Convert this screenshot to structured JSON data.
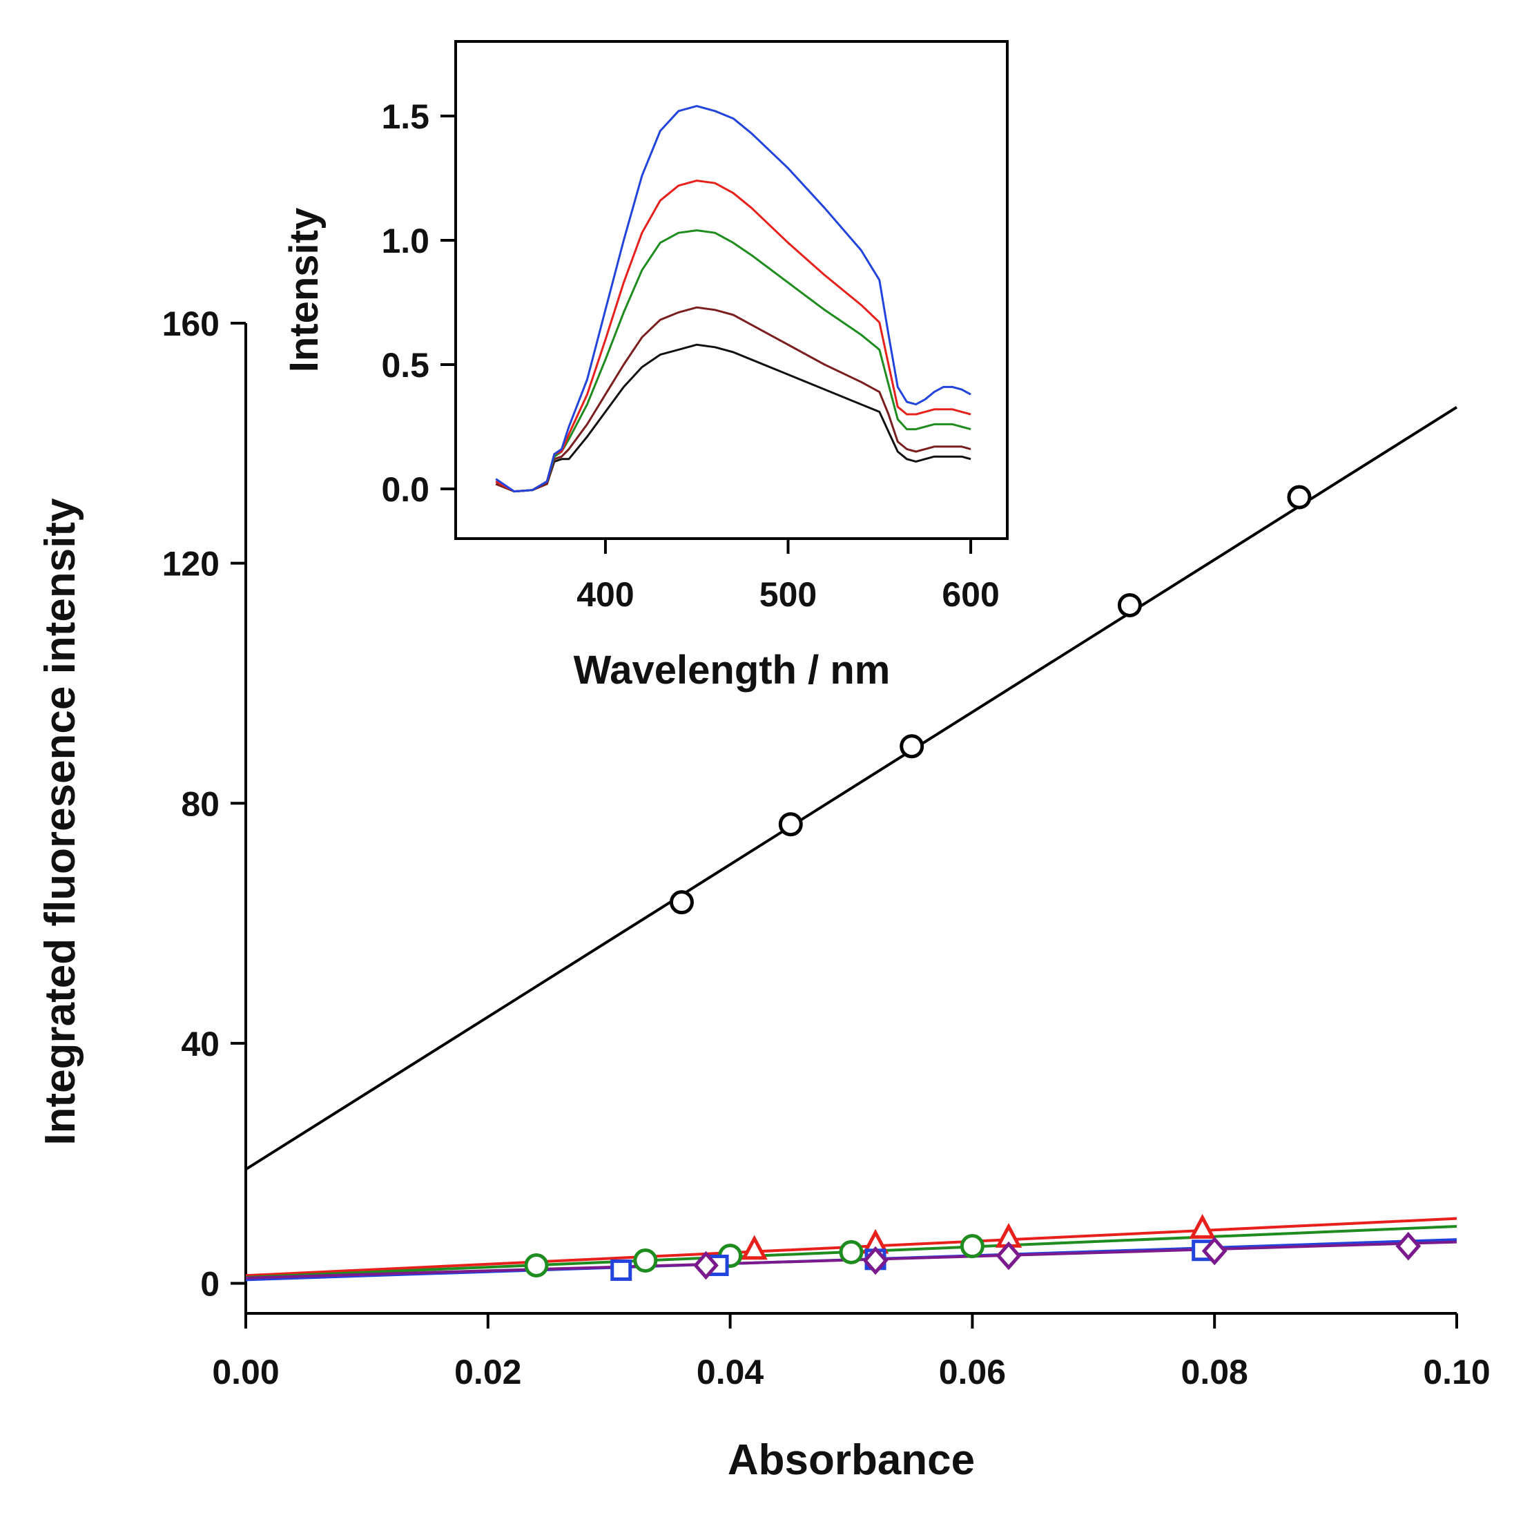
{
  "chart_data": [
    {
      "id": "main",
      "type": "scatter",
      "title": "",
      "xlabel": "Absorbance",
      "ylabel": "Integrated fluoresence intensity",
      "xlim": [
        0,
        0.1
      ],
      "ylim": [
        -5,
        160
      ],
      "xticks": [
        0.0,
        0.02,
        0.04,
        0.06,
        0.08,
        0.1
      ],
      "xtick_labels": [
        "0.00",
        "0.02",
        "0.04",
        "0.06",
        "0.08",
        "0.10"
      ],
      "yticks": [
        0,
        40,
        80,
        120,
        160
      ],
      "ytick_labels": [
        "0",
        "40",
        "80",
        "120",
        "160"
      ],
      "grid": false,
      "series": [
        {
          "name": "black circles",
          "color": "#000000",
          "marker": "circle",
          "x": [
            0.036,
            0.045,
            0.055,
            0.073,
            0.087
          ],
          "y": [
            63.5,
            76.5,
            89.5,
            113,
            131
          ],
          "fit": {
            "slope": 1270,
            "intercept": 19
          }
        },
        {
          "name": "red triangles",
          "color": "#e8201c",
          "marker": "triangle",
          "x": [
            0.042,
            0.052,
            0.063,
            0.079
          ],
          "y": [
            5.5,
            6.5,
            7.5,
            9
          ],
          "fit": {
            "slope": 95,
            "intercept": 1.3
          }
        },
        {
          "name": "green circles",
          "color": "#1e8c1e",
          "marker": "circle",
          "x": [
            0.024,
            0.033,
            0.04,
            0.05,
            0.06
          ],
          "y": [
            3,
            3.8,
            4.6,
            5.2,
            6.2
          ],
          "fit": {
            "slope": 85,
            "intercept": 1.0
          }
        },
        {
          "name": "blue squares",
          "color": "#2244dd",
          "marker": "square",
          "x": [
            0.031,
            0.039,
            0.052,
            0.079
          ],
          "y": [
            2.2,
            3.0,
            4.0,
            5.5
          ],
          "fit": {
            "slope": 67,
            "intercept": 0.6
          }
        },
        {
          "name": "purple diamonds",
          "color": "#7a1a8c",
          "marker": "diamond",
          "x": [
            0.038,
            0.052,
            0.063,
            0.08,
            0.096
          ],
          "y": [
            3.0,
            3.8,
            4.6,
            5.4,
            6.2
          ],
          "fit": {
            "slope": 60,
            "intercept": 0.9
          }
        }
      ]
    },
    {
      "id": "inset",
      "type": "line",
      "title": "",
      "xlabel": "Wavelength / nm",
      "ylabel": "Intensity",
      "xlim": [
        318,
        620
      ],
      "ylim": [
        -0.2,
        1.8
      ],
      "xticks": [
        400,
        500,
        600
      ],
      "xtick_labels": [
        "400",
        "500",
        "600"
      ],
      "yticks": [
        0.0,
        0.5,
        1.0,
        1.5
      ],
      "ytick_labels": [
        "0.0",
        "0.5",
        "1.0",
        "1.5"
      ],
      "grid": false,
      "x": [
        340,
        350,
        360,
        368,
        372,
        376,
        380,
        390,
        400,
        410,
        420,
        430,
        440,
        450,
        460,
        470,
        480,
        500,
        520,
        540,
        550,
        555,
        560,
        565,
        570,
        575,
        580,
        585,
        590,
        595,
        600
      ],
      "series": [
        {
          "name": "blue",
          "color": "#2244dd",
          "values": [
            0.04,
            -0.01,
            -0.005,
            0.03,
            0.14,
            0.16,
            0.25,
            0.44,
            0.72,
            1.0,
            1.26,
            1.44,
            1.52,
            1.54,
            1.52,
            1.49,
            1.43,
            1.29,
            1.13,
            0.96,
            0.84,
            0.62,
            0.41,
            0.35,
            0.34,
            0.36,
            0.39,
            0.41,
            0.41,
            0.4,
            0.38
          ]
        },
        {
          "name": "red",
          "color": "#e8201c",
          "values": [
            0.03,
            -0.01,
            -0.005,
            0.03,
            0.14,
            0.15,
            0.22,
            0.38,
            0.6,
            0.83,
            1.03,
            1.16,
            1.22,
            1.24,
            1.23,
            1.19,
            1.13,
            0.99,
            0.86,
            0.74,
            0.67,
            0.5,
            0.33,
            0.3,
            0.3,
            0.31,
            0.32,
            0.32,
            0.32,
            0.31,
            0.3
          ]
        },
        {
          "name": "green",
          "color": "#1e8c1e",
          "values": [
            0.03,
            -0.01,
            -0.005,
            0.03,
            0.13,
            0.15,
            0.2,
            0.34,
            0.52,
            0.71,
            0.88,
            0.99,
            1.03,
            1.04,
            1.03,
            0.99,
            0.94,
            0.83,
            0.72,
            0.62,
            0.56,
            0.42,
            0.28,
            0.24,
            0.24,
            0.25,
            0.26,
            0.26,
            0.26,
            0.25,
            0.24
          ]
        },
        {
          "name": "brown",
          "color": "#7a1e1e",
          "values": [
            0.02,
            -0.01,
            -0.005,
            0.02,
            0.12,
            0.13,
            0.16,
            0.26,
            0.38,
            0.5,
            0.61,
            0.68,
            0.71,
            0.73,
            0.72,
            0.7,
            0.66,
            0.58,
            0.5,
            0.43,
            0.39,
            0.3,
            0.19,
            0.16,
            0.15,
            0.16,
            0.17,
            0.17,
            0.17,
            0.17,
            0.16
          ]
        },
        {
          "name": "black",
          "color": "#111111",
          "values": [
            0.02,
            -0.01,
            -0.005,
            0.02,
            0.11,
            0.12,
            0.12,
            0.21,
            0.31,
            0.41,
            0.49,
            0.54,
            0.56,
            0.58,
            0.57,
            0.55,
            0.52,
            0.46,
            0.4,
            0.34,
            0.31,
            0.23,
            0.15,
            0.12,
            0.11,
            0.12,
            0.13,
            0.13,
            0.13,
            0.13,
            0.12
          ]
        }
      ]
    }
  ]
}
